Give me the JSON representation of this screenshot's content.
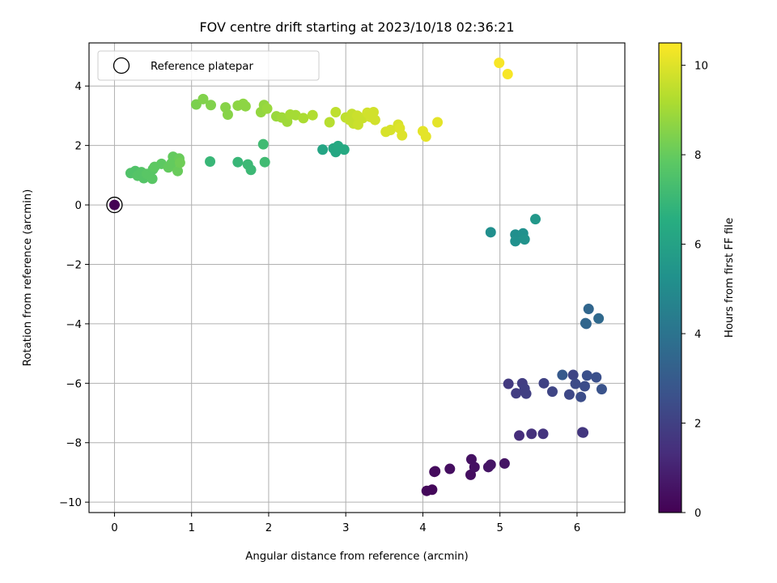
{
  "chart_data": {
    "type": "scatter",
    "title": "FOV centre drift starting at 2023/10/18 02:36:21",
    "xlabel": "Angular distance from reference (arcmin)",
    "ylabel": "Rotation from reference (arcmin)",
    "xlim": [
      -0.33,
      6.62
    ],
    "ylim": [
      -10.35,
      5.45
    ],
    "xticks": [
      0,
      1,
      2,
      3,
      4,
      5,
      6
    ],
    "yticks": [
      -10,
      -8,
      -6,
      -4,
      -2,
      0,
      2,
      4
    ],
    "xtick_labels": [
      "0",
      "1",
      "2",
      "3",
      "4",
      "5",
      "6"
    ],
    "ytick_labels": [
      "−10",
      "−8",
      "−6",
      "−4",
      "−2",
      "0",
      "2",
      "4"
    ],
    "grid": true,
    "legend": {
      "location": "upper-left",
      "entries": [
        "Reference platepar"
      ]
    },
    "colorbar": {
      "label": "Hours from first FF file",
      "colormap": "viridis",
      "range": [
        0,
        10.5
      ],
      "ticks": [
        0,
        2,
        4,
        6,
        8,
        10
      ],
      "tick_labels": [
        "0",
        "2",
        "4",
        "6",
        "8",
        "10"
      ]
    },
    "reference_point": {
      "x": 0,
      "y": 0,
      "c": 0
    },
    "points": [
      {
        "x": 4.05,
        "y": -9.62,
        "c": 0.2
      },
      {
        "x": 4.12,
        "y": -9.58,
        "c": 0.2
      },
      {
        "x": 4.15,
        "y": -8.98,
        "c": 0.3
      },
      {
        "x": 4.16,
        "y": -8.96,
        "c": 0.3
      },
      {
        "x": 4.35,
        "y": -8.88,
        "c": 0.4
      },
      {
        "x": 4.62,
        "y": -9.08,
        "c": 0.4
      },
      {
        "x": 4.63,
        "y": -8.56,
        "c": 0.5
      },
      {
        "x": 4.67,
        "y": -8.82,
        "c": 0.5
      },
      {
        "x": 4.85,
        "y": -8.82,
        "c": 0.6
      },
      {
        "x": 4.88,
        "y": -8.74,
        "c": 0.6
      },
      {
        "x": 5.06,
        "y": -8.7,
        "c": 0.6
      },
      {
        "x": 5.25,
        "y": -7.76,
        "c": 1.4
      },
      {
        "x": 5.41,
        "y": -7.7,
        "c": 1.5
      },
      {
        "x": 5.56,
        "y": -7.7,
        "c": 1.6
      },
      {
        "x": 6.07,
        "y": -7.65,
        "c": 1.6
      },
      {
        "x": 6.08,
        "y": -7.66,
        "c": 1.7
      },
      {
        "x": 5.11,
        "y": -6.02,
        "c": 1.8
      },
      {
        "x": 5.21,
        "y": -6.34,
        "c": 1.9
      },
      {
        "x": 5.29,
        "y": -6.0,
        "c": 1.9
      },
      {
        "x": 5.32,
        "y": -6.18,
        "c": 2.0
      },
      {
        "x": 5.34,
        "y": -6.35,
        "c": 2.0
      },
      {
        "x": 5.57,
        "y": -6.0,
        "c": 2.1
      },
      {
        "x": 5.68,
        "y": -6.28,
        "c": 2.2
      },
      {
        "x": 5.9,
        "y": -6.38,
        "c": 2.3
      },
      {
        "x": 5.95,
        "y": -5.72,
        "c": 2.2
      },
      {
        "x": 5.98,
        "y": -6.02,
        "c": 2.4
      },
      {
        "x": 6.05,
        "y": -6.46,
        "c": 2.5
      },
      {
        "x": 6.1,
        "y": -6.1,
        "c": 2.5
      },
      {
        "x": 6.13,
        "y": -5.74,
        "c": 2.6
      },
      {
        "x": 6.25,
        "y": -5.8,
        "c": 2.6
      },
      {
        "x": 6.32,
        "y": -6.2,
        "c": 2.7
      },
      {
        "x": 5.81,
        "y": -5.72,
        "c": 3.0
      },
      {
        "x": 6.12,
        "y": -4.0,
        "c": 3.4
      },
      {
        "x": 6.11,
        "y": -3.98,
        "c": 3.5
      },
      {
        "x": 6.15,
        "y": -3.5,
        "c": 3.5
      },
      {
        "x": 6.28,
        "y": -3.82,
        "c": 3.6
      },
      {
        "x": 4.88,
        "y": -0.92,
        "c": 5.2
      },
      {
        "x": 5.2,
        "y": -1.0,
        "c": 5.2
      },
      {
        "x": 5.2,
        "y": -1.22,
        "c": 5.3
      },
      {
        "x": 5.3,
        "y": -0.96,
        "c": 5.3
      },
      {
        "x": 5.32,
        "y": -1.16,
        "c": 5.4
      },
      {
        "x": 5.46,
        "y": -0.48,
        "c": 5.6
      },
      {
        "x": 2.7,
        "y": 1.86,
        "c": 6.2
      },
      {
        "x": 2.84,
        "y": 1.9,
        "c": 6.3
      },
      {
        "x": 2.87,
        "y": 1.78,
        "c": 6.3
      },
      {
        "x": 2.9,
        "y": 1.98,
        "c": 6.4
      },
      {
        "x": 2.98,
        "y": 1.86,
        "c": 6.4
      },
      {
        "x": 1.24,
        "y": 1.46,
        "c": 7.0
      },
      {
        "x": 1.6,
        "y": 1.44,
        "c": 7.0
      },
      {
        "x": 1.73,
        "y": 1.36,
        "c": 7.1
      },
      {
        "x": 1.77,
        "y": 1.18,
        "c": 7.1
      },
      {
        "x": 1.93,
        "y": 2.04,
        "c": 7.2
      },
      {
        "x": 1.95,
        "y": 1.44,
        "c": 7.2
      },
      {
        "x": 0.21,
        "y": 1.07,
        "c": 7.6
      },
      {
        "x": 0.27,
        "y": 1.14,
        "c": 7.6
      },
      {
        "x": 0.3,
        "y": 0.98,
        "c": 7.7
      },
      {
        "x": 0.35,
        "y": 1.1,
        "c": 7.7
      },
      {
        "x": 0.38,
        "y": 0.9,
        "c": 7.7
      },
      {
        "x": 0.42,
        "y": 1.04,
        "c": 7.8
      },
      {
        "x": 0.49,
        "y": 0.88,
        "c": 7.8
      },
      {
        "x": 0.5,
        "y": 1.2,
        "c": 7.8
      },
      {
        "x": 0.52,
        "y": 1.28,
        "c": 7.9
      },
      {
        "x": 0.61,
        "y": 1.38,
        "c": 7.9
      },
      {
        "x": 0.7,
        "y": 1.26,
        "c": 8.0
      },
      {
        "x": 0.74,
        "y": 1.4,
        "c": 8.0
      },
      {
        "x": 0.76,
        "y": 1.62,
        "c": 8.0
      },
      {
        "x": 0.82,
        "y": 1.14,
        "c": 8.1
      },
      {
        "x": 0.84,
        "y": 1.56,
        "c": 8.1
      },
      {
        "x": 0.85,
        "y": 1.42,
        "c": 8.2
      },
      {
        "x": 1.06,
        "y": 3.38,
        "c": 8.4
      },
      {
        "x": 1.15,
        "y": 3.56,
        "c": 8.5
      },
      {
        "x": 1.25,
        "y": 3.36,
        "c": 8.5
      },
      {
        "x": 1.44,
        "y": 3.28,
        "c": 8.6
      },
      {
        "x": 1.47,
        "y": 3.04,
        "c": 8.6
      },
      {
        "x": 1.6,
        "y": 3.34,
        "c": 8.7
      },
      {
        "x": 1.67,
        "y": 3.4,
        "c": 8.7
      },
      {
        "x": 1.7,
        "y": 3.32,
        "c": 8.7
      },
      {
        "x": 1.9,
        "y": 3.12,
        "c": 8.8
      },
      {
        "x": 1.94,
        "y": 3.36,
        "c": 8.8
      },
      {
        "x": 1.98,
        "y": 3.24,
        "c": 8.9
      },
      {
        "x": 2.1,
        "y": 2.98,
        "c": 8.9
      },
      {
        "x": 2.17,
        "y": 2.94,
        "c": 9.0
      },
      {
        "x": 2.24,
        "y": 2.8,
        "c": 9.0
      },
      {
        "x": 2.28,
        "y": 3.04,
        "c": 9.1
      },
      {
        "x": 2.35,
        "y": 3.02,
        "c": 9.1
      },
      {
        "x": 2.45,
        "y": 2.92,
        "c": 9.2
      },
      {
        "x": 2.57,
        "y": 3.02,
        "c": 9.3
      },
      {
        "x": 2.79,
        "y": 2.78,
        "c": 9.4
      },
      {
        "x": 2.87,
        "y": 3.12,
        "c": 9.5
      },
      {
        "x": 3.0,
        "y": 2.94,
        "c": 9.5
      },
      {
        "x": 3.05,
        "y": 2.86,
        "c": 9.6
      },
      {
        "x": 3.08,
        "y": 3.06,
        "c": 9.6
      },
      {
        "x": 3.1,
        "y": 2.74,
        "c": 9.6
      },
      {
        "x": 3.15,
        "y": 3.0,
        "c": 9.7
      },
      {
        "x": 3.16,
        "y": 2.7,
        "c": 9.7
      },
      {
        "x": 3.22,
        "y": 2.92,
        "c": 9.7
      },
      {
        "x": 3.28,
        "y": 3.1,
        "c": 9.8
      },
      {
        "x": 3.32,
        "y": 2.96,
        "c": 9.8
      },
      {
        "x": 3.36,
        "y": 3.12,
        "c": 9.8
      },
      {
        "x": 3.38,
        "y": 2.86,
        "c": 9.8
      },
      {
        "x": 3.52,
        "y": 2.46,
        "c": 9.9
      },
      {
        "x": 3.58,
        "y": 2.52,
        "c": 9.9
      },
      {
        "x": 3.68,
        "y": 2.7,
        "c": 9.9
      },
      {
        "x": 3.7,
        "y": 2.58,
        "c": 10.0
      },
      {
        "x": 3.73,
        "y": 2.34,
        "c": 10.0
      },
      {
        "x": 4.0,
        "y": 2.48,
        "c": 10.1
      },
      {
        "x": 4.04,
        "y": 2.3,
        "c": 10.1
      },
      {
        "x": 4.19,
        "y": 2.78,
        "c": 10.1
      },
      {
        "x": 4.99,
        "y": 4.78,
        "c": 10.4
      },
      {
        "x": 5.1,
        "y": 4.4,
        "c": 10.4
      }
    ]
  }
}
